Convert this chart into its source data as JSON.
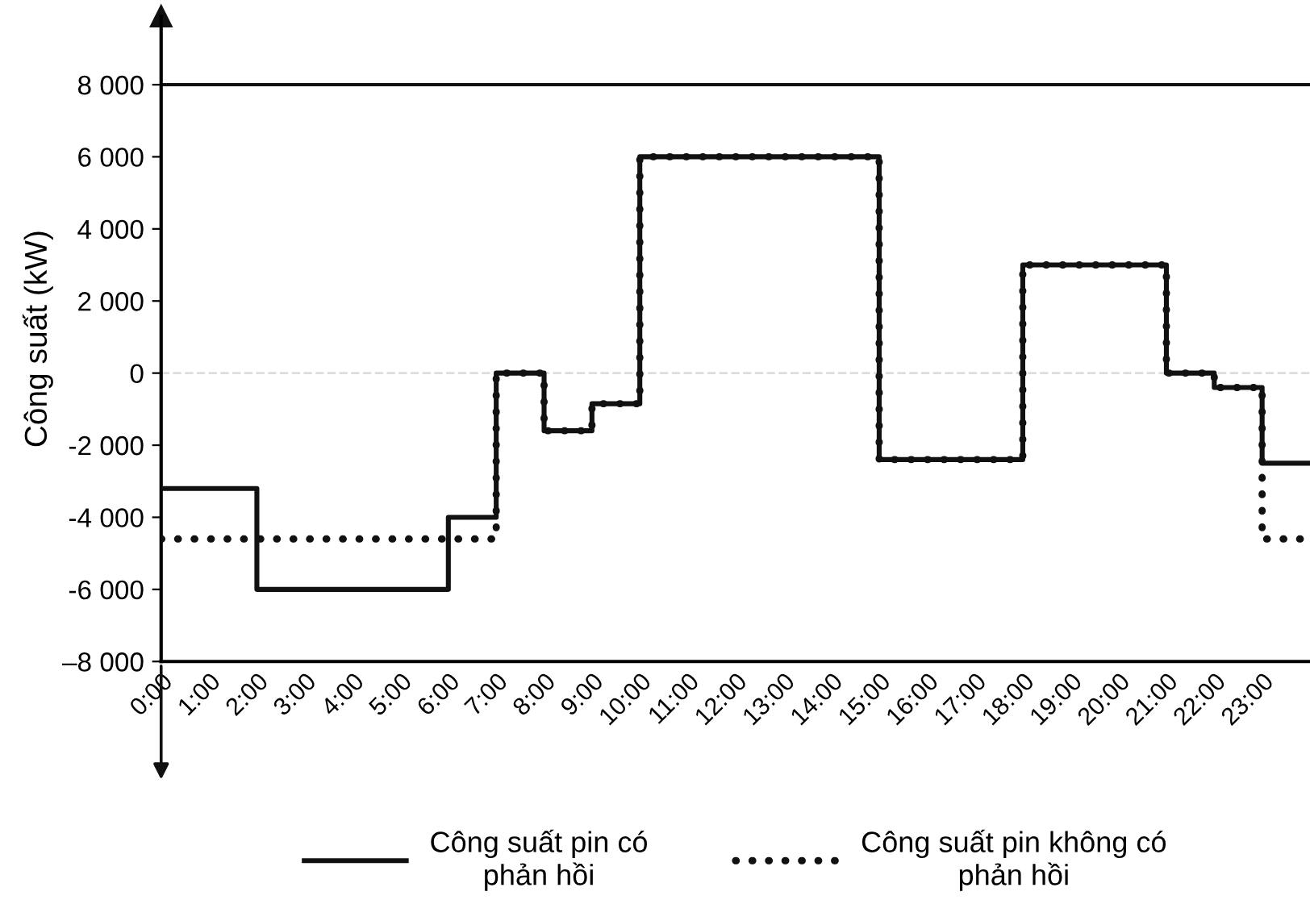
{
  "chart_data": {
    "type": "step",
    "ylabel": "Công suất (kW)",
    "x": [
      0,
      1,
      2,
      3,
      4,
      5,
      6,
      7,
      8,
      9,
      10,
      11,
      12,
      13,
      14,
      15,
      16,
      17,
      18,
      19,
      20,
      21,
      22,
      23,
      24
    ],
    "series": [
      {
        "name": "Công suất pin có\nphản hồi",
        "color": "#111111",
        "line_style": "solid",
        "values": [
          -3200,
          -3200,
          -6000,
          -6000,
          -6000,
          -6000,
          -4000,
          0,
          -1600,
          -850,
          6000,
          6000,
          6000,
          6000,
          6000,
          -2400,
          -2400,
          -2400,
          3000,
          3000,
          3000,
          0,
          -400,
          -2500,
          -2500
        ]
      },
      {
        "name": "Công suất pin không có\nphản hồi",
        "color": "#111111",
        "line_style": "dotted",
        "values": [
          -4600,
          -4600,
          -4600,
          -4600,
          -4600,
          -4600,
          -4600,
          0,
          -1600,
          -850,
          6000,
          6000,
          6000,
          6000,
          6000,
          -2400,
          -2400,
          -2400,
          3000,
          3000,
          3000,
          0,
          -400,
          -4600,
          -4600
        ]
      }
    ],
    "xlim": [
      0,
      24
    ],
    "xticks": [
      {
        "value": 0,
        "label": "0:00"
      },
      {
        "value": 1,
        "label": "1:00"
      },
      {
        "value": 2,
        "label": "2:00"
      },
      {
        "value": 3,
        "label": "3:00"
      },
      {
        "value": 4,
        "label": "4:00"
      },
      {
        "value": 5,
        "label": "5:00"
      },
      {
        "value": 6,
        "label": "6:00"
      },
      {
        "value": 7,
        "label": "7:00"
      },
      {
        "value": 8,
        "label": "8:00"
      },
      {
        "value": 9,
        "label": "9:00"
      },
      {
        "value": 10,
        "label": "10:00"
      },
      {
        "value": 11,
        "label": "11:00"
      },
      {
        "value": 12,
        "label": "12:00"
      },
      {
        "value": 13,
        "label": "13:00"
      },
      {
        "value": 14,
        "label": "14:00"
      },
      {
        "value": 15,
        "label": "15:00"
      },
      {
        "value": 16,
        "label": "16:00"
      },
      {
        "value": 17,
        "label": "17:00"
      },
      {
        "value": 18,
        "label": "18:00"
      },
      {
        "value": 19,
        "label": "19:00"
      },
      {
        "value": 20,
        "label": "20:00"
      },
      {
        "value": 21,
        "label": "21:00"
      },
      {
        "value": 22,
        "label": "22:00"
      },
      {
        "value": 23,
        "label": "23:00"
      }
    ],
    "ylim": [
      -8000,
      9900
    ],
    "yticks": [
      {
        "value": 8000,
        "label": "8 000"
      },
      {
        "value": 6000,
        "label": "6 000"
      },
      {
        "value": 4000,
        "label": "4 000"
      },
      {
        "value": 2000,
        "label": "2 000"
      },
      0,
      {
        "value": -2000,
        "label": "-2 000"
      },
      {
        "value": -4000,
        "label": "-4 000"
      },
      {
        "value": -6000,
        "label": "-6 000"
      },
      {
        "value": -8000,
        "label": "–8 000"
      }
    ],
    "ref_lines": [
      {
        "axis": "y",
        "value": 8000,
        "label": null,
        "color": "#111111",
        "line_style": "solid"
      },
      {
        "axis": "y",
        "value": 0,
        "label": null,
        "color": "#dddddd",
        "line_style": "dashed"
      }
    ],
    "grid": false,
    "legend": "bottom"
  }
}
